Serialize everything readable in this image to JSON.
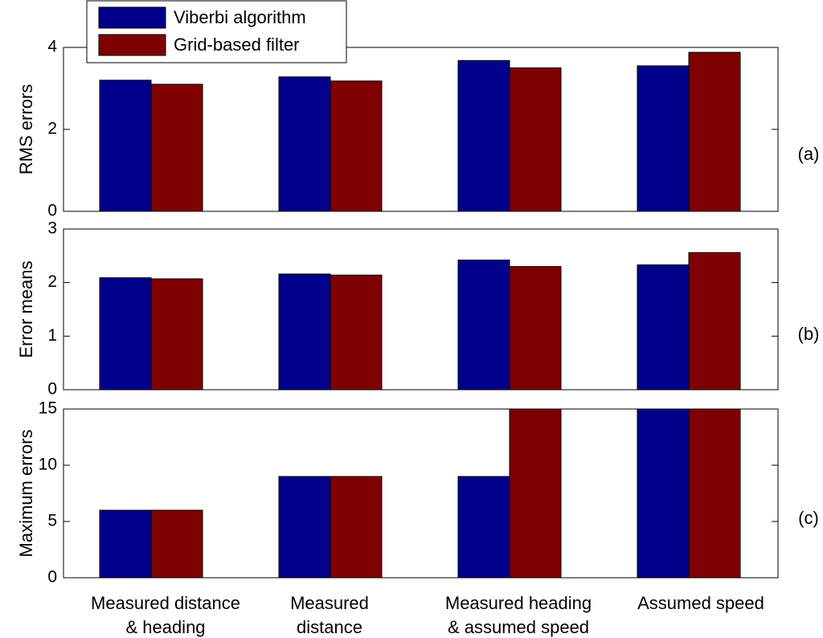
{
  "legend": {
    "entries": [
      {
        "label": "Viberbi algorithm",
        "color": "#00008B"
      },
      {
        "label": "Grid-based filter",
        "color": "#7F0000"
      }
    ],
    "placement": "top-left"
  },
  "categories": [
    [
      "Measured distance",
      "& heading"
    ],
    [
      "Measured",
      "distance"
    ],
    [
      "Measured heading",
      "& assumed speed"
    ],
    [
      "Assumed speed"
    ]
  ],
  "chart_data": [
    {
      "type": "bar",
      "panel_label": "(a)",
      "ylabel": "RMS errors",
      "ylim": [
        0,
        4
      ],
      "yticks": [
        0,
        2,
        4
      ],
      "series": [
        {
          "name": "Viberbi algorithm",
          "values": [
            3.2,
            3.28,
            3.68,
            3.55
          ]
        },
        {
          "name": "Grid-based filter",
          "values": [
            3.1,
            3.18,
            3.5,
            3.88
          ]
        }
      ]
    },
    {
      "type": "bar",
      "panel_label": "(b)",
      "ylabel": "Error means",
      "ylim": [
        0,
        3
      ],
      "yticks": [
        0,
        1,
        2,
        3
      ],
      "series": [
        {
          "name": "Viberbi algorithm",
          "values": [
            2.09,
            2.16,
            2.42,
            2.33
          ]
        },
        {
          "name": "Grid-based filter",
          "values": [
            2.07,
            2.14,
            2.3,
            2.56
          ]
        }
      ]
    },
    {
      "type": "bar",
      "panel_label": "(c)",
      "ylabel": "Maximum errors",
      "ylim": [
        0,
        15
      ],
      "yticks": [
        0,
        5,
        10,
        15
      ],
      "series": [
        {
          "name": "Viberbi algorithm",
          "values": [
            6,
            9,
            9,
            15
          ]
        },
        {
          "name": "Grid-based filter",
          "values": [
            6,
            9,
            15,
            15
          ]
        }
      ]
    }
  ]
}
